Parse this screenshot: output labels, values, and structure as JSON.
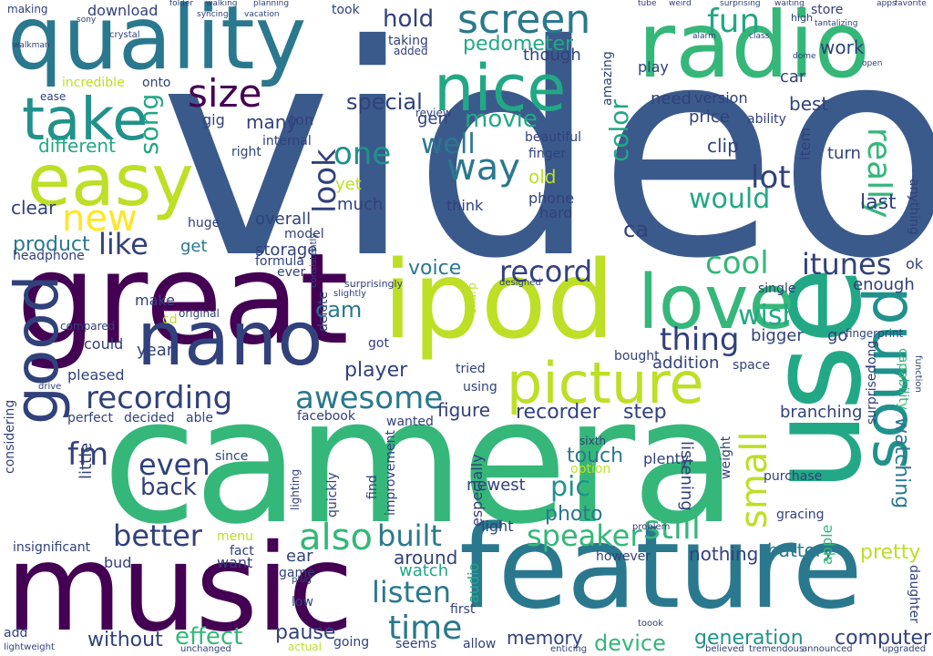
{
  "palette": {
    "navy": "#3b5a8c",
    "purple": "#440154",
    "teal": "#2a788e",
    "green": "#35b779",
    "lime": "#bddf26",
    "indigo": "#31417b",
    "sea": "#22a884",
    "cyan": "#21918c",
    "background": "#ffffff"
  },
  "words": [
    {
      "text": "video"
    },
    {
      "text": "camera"
    },
    {
      "text": "great"
    },
    {
      "text": "music"
    },
    {
      "text": "feature"
    },
    {
      "text": "use"
    },
    {
      "text": "ipod"
    },
    {
      "text": "quality"
    },
    {
      "text": "radio"
    },
    {
      "text": "nano"
    },
    {
      "text": "good"
    },
    {
      "text": "easy"
    },
    {
      "text": "take"
    },
    {
      "text": "love"
    },
    {
      "text": "sound"
    },
    {
      "text": "picture"
    },
    {
      "text": "nice"
    },
    {
      "text": "screen"
    },
    {
      "text": "size"
    },
    {
      "text": "awesome"
    },
    {
      "text": "recording"
    },
    {
      "text": "speaker"
    },
    {
      "text": "record"
    },
    {
      "text": "also"
    },
    {
      "text": "small"
    },
    {
      "text": "fun"
    },
    {
      "text": "new"
    },
    {
      "text": "really"
    },
    {
      "text": "way"
    },
    {
      "text": "cool"
    },
    {
      "text": "itunes"
    },
    {
      "text": "thing"
    },
    {
      "text": "better"
    },
    {
      "text": "built"
    },
    {
      "text": "listen"
    },
    {
      "text": "time"
    },
    {
      "text": "still"
    },
    {
      "text": "wish"
    },
    {
      "text": "like"
    },
    {
      "text": "fm"
    },
    {
      "text": "look"
    },
    {
      "text": "would"
    },
    {
      "text": "song"
    },
    {
      "text": "even"
    },
    {
      "text": "one"
    },
    {
      "text": "well"
    },
    {
      "text": "movie"
    },
    {
      "text": "lot"
    },
    {
      "text": "pedometer"
    },
    {
      "text": "hold"
    },
    {
      "text": "product"
    },
    {
      "text": "different"
    },
    {
      "text": "color"
    },
    {
      "text": "watching"
    },
    {
      "text": "voice"
    },
    {
      "text": "player"
    },
    {
      "text": "back"
    },
    {
      "text": "pic"
    },
    {
      "text": "photo"
    },
    {
      "text": "effect"
    },
    {
      "text": "without"
    },
    {
      "text": "pause"
    },
    {
      "text": "device"
    },
    {
      "text": "generation"
    },
    {
      "text": "computer"
    },
    {
      "text": "battery"
    },
    {
      "text": "pretty"
    },
    {
      "text": "nothing"
    },
    {
      "text": "listening"
    },
    {
      "text": "memory"
    },
    {
      "text": "around"
    },
    {
      "text": "watch"
    },
    {
      "text": "audio"
    },
    {
      "text": "recorder"
    },
    {
      "text": "step"
    },
    {
      "text": "touch"
    },
    {
      "text": "newest"
    },
    {
      "text": "figure"
    },
    {
      "text": "cam"
    },
    {
      "text": "overall"
    },
    {
      "text": "storage"
    },
    {
      "text": "get"
    },
    {
      "text": "headphone"
    },
    {
      "text": "clear"
    },
    {
      "text": "special"
    },
    {
      "text": "version"
    },
    {
      "text": "price"
    },
    {
      "text": "best"
    },
    {
      "text": "need"
    },
    {
      "text": "clip"
    },
    {
      "text": "last"
    },
    {
      "text": "turn"
    },
    {
      "text": "item"
    },
    {
      "text": "enough"
    },
    {
      "text": "bigger"
    },
    {
      "text": "go"
    },
    {
      "text": "ok"
    },
    {
      "text": "play"
    },
    {
      "text": "car"
    },
    {
      "text": "work"
    },
    {
      "text": "store"
    },
    {
      "text": "download"
    },
    {
      "text": "making"
    },
    {
      "text": "took"
    },
    {
      "text": "much"
    },
    {
      "text": "yet"
    },
    {
      "text": "think"
    },
    {
      "text": "phone"
    },
    {
      "text": "hard"
    },
    {
      "text": "old"
    },
    {
      "text": "ca"
    },
    {
      "text": "gen"
    },
    {
      "text": "many"
    },
    {
      "text": "year"
    },
    {
      "text": "could"
    },
    {
      "text": "make"
    },
    {
      "text": "pleased"
    },
    {
      "text": "perfect"
    },
    {
      "text": "decided"
    },
    {
      "text": "able"
    },
    {
      "text": "facebook"
    },
    {
      "text": "little"
    },
    {
      "text": "since"
    },
    {
      "text": "menu"
    },
    {
      "text": "fact"
    },
    {
      "text": "want"
    },
    {
      "text": "ear"
    },
    {
      "text": "bud"
    },
    {
      "text": "add"
    },
    {
      "text": "insignificant"
    },
    {
      "text": "considering"
    },
    {
      "text": "apple"
    },
    {
      "text": "purchase"
    },
    {
      "text": "branching"
    },
    {
      "text": "gracing"
    },
    {
      "text": "surprised"
    },
    {
      "text": "capability"
    },
    {
      "text": "anything"
    },
    {
      "text": "daughter"
    },
    {
      "text": "weight"
    },
    {
      "text": "plenty"
    },
    {
      "text": "option"
    },
    {
      "text": "especially"
    },
    {
      "text": "quickly"
    },
    {
      "text": "find"
    },
    {
      "text": "improvement"
    },
    {
      "text": "light"
    },
    {
      "text": "however"
    },
    {
      "text": "allow"
    },
    {
      "text": "first"
    },
    {
      "text": "seems"
    },
    {
      "text": "going"
    },
    {
      "text": "actual"
    },
    {
      "text": "low"
    },
    {
      "text": "game"
    },
    {
      "text": "lighting"
    },
    {
      "text": "wanted"
    },
    {
      "text": "using"
    },
    {
      "text": "tried"
    },
    {
      "text": "got"
    },
    {
      "text": "addition"
    },
    {
      "text": "space"
    },
    {
      "text": "single"
    },
    {
      "text": "long"
    },
    {
      "text": "fingerprint"
    },
    {
      "text": "bought"
    },
    {
      "text": "ever"
    },
    {
      "text": "gig"
    },
    {
      "text": "ton"
    },
    {
      "text": "right"
    },
    {
      "text": "internal"
    },
    {
      "text": "beautiful"
    },
    {
      "text": "ability"
    },
    {
      "text": "finger"
    },
    {
      "text": "amazing"
    },
    {
      "text": "review"
    },
    {
      "text": "taking"
    },
    {
      "text": "added"
    },
    {
      "text": "though"
    },
    {
      "text": "incredible"
    },
    {
      "text": "onto"
    },
    {
      "text": "ease"
    },
    {
      "text": "huge"
    },
    {
      "text": "formula"
    },
    {
      "text": "model"
    },
    {
      "text": "delete"
    },
    {
      "text": "compared"
    },
    {
      "text": "cd"
    },
    {
      "text": "original"
    },
    {
      "text": "sharp"
    },
    {
      "text": "sixth"
    },
    {
      "text": "function"
    },
    {
      "text": "plug"
    },
    {
      "text": "tremendous"
    },
    {
      "text": "upgraded"
    },
    {
      "text": "announced"
    },
    {
      "text": "believed"
    },
    {
      "text": "lightweight"
    },
    {
      "text": "unchanged"
    },
    {
      "text": "enticing"
    },
    {
      "text": "problem"
    },
    {
      "text": "toook"
    },
    {
      "text": "drive"
    },
    {
      "text": "consistently"
    },
    {
      "text": "slightly"
    },
    {
      "text": "surprisingly"
    },
    {
      "text": "designed"
    },
    {
      "text": "sony"
    },
    {
      "text": "walkman"
    },
    {
      "text": "crystal"
    },
    {
      "text": "folder"
    },
    {
      "text": "walking"
    },
    {
      "text": "planning"
    },
    {
      "text": "syncing"
    },
    {
      "text": "vacation"
    },
    {
      "text": "tube"
    },
    {
      "text": "weird"
    },
    {
      "text": "waiting"
    },
    {
      "text": "apps"
    },
    {
      "text": "favorite"
    },
    {
      "text": "tantalizing"
    },
    {
      "text": "class"
    },
    {
      "text": "dome"
    },
    {
      "text": "alarm"
    },
    {
      "text": "open"
    },
    {
      "text": "high"
    },
    {
      "text": "surprising"
    }
  ]
}
